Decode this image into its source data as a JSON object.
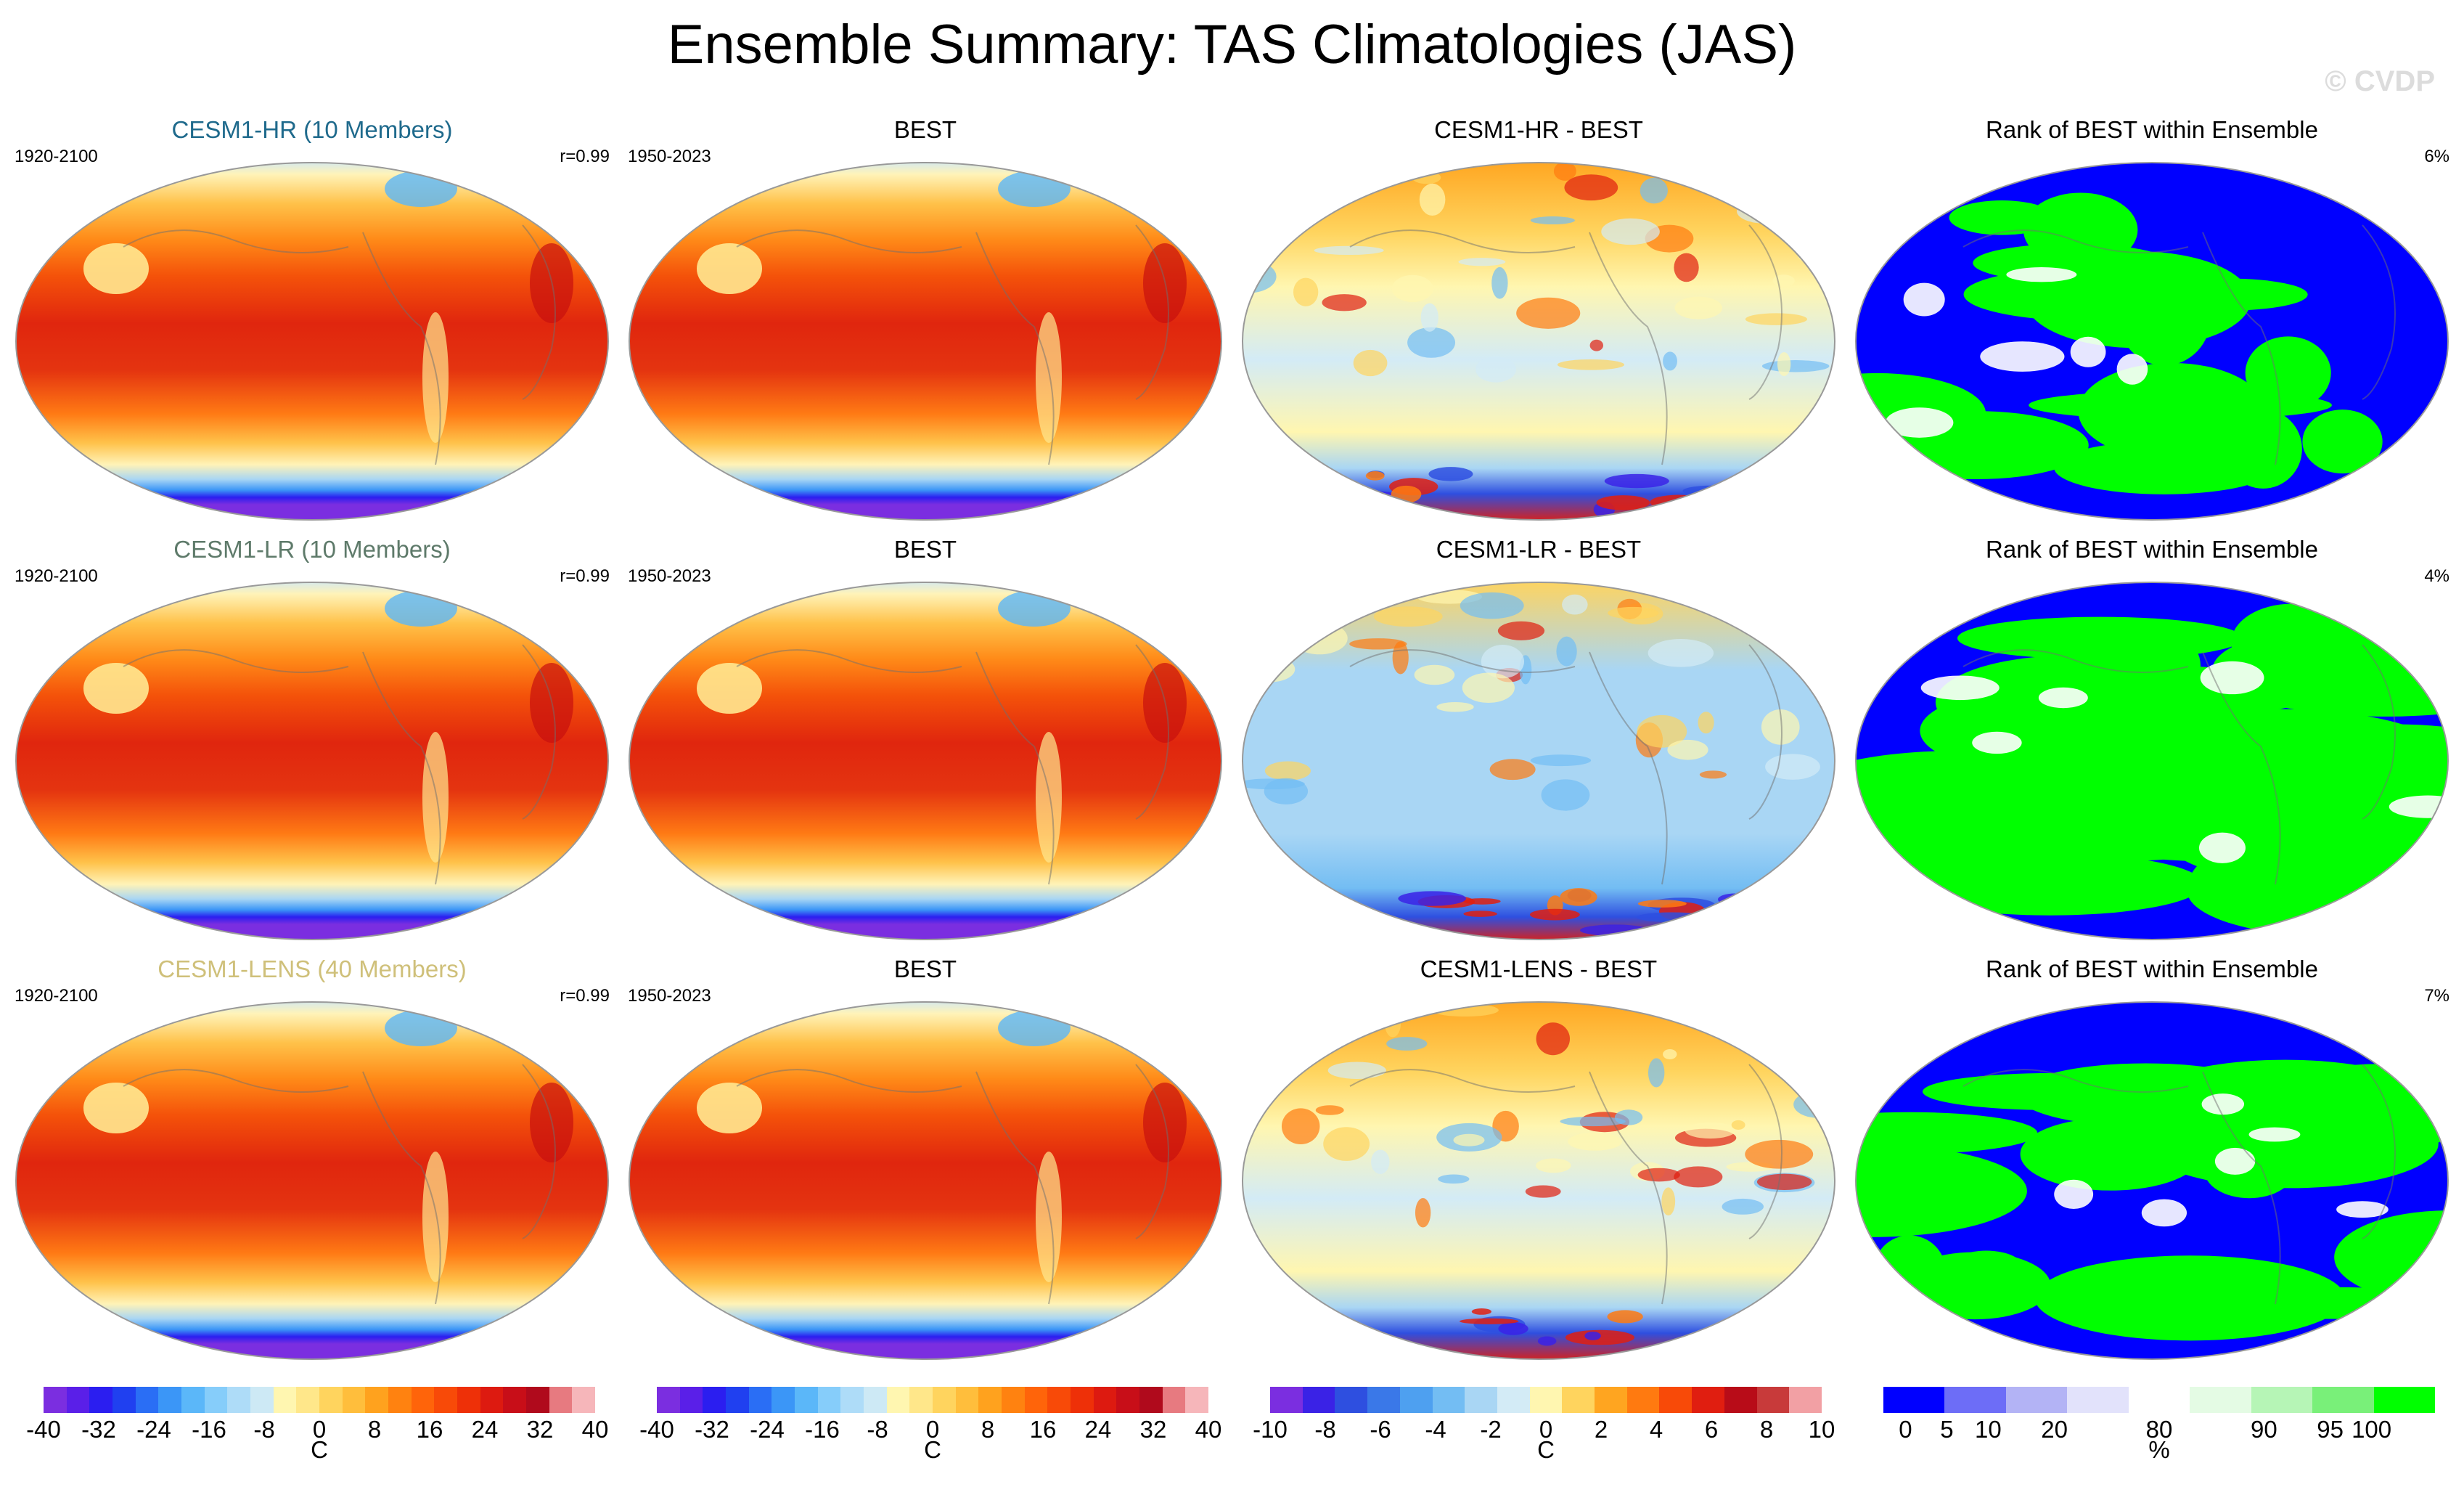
{
  "title": "Ensemble Summary: TAS Climatologies (JAS)",
  "watermark": "© CVDP",
  "rows": [
    {
      "model": {
        "title": "CESM1-HR (10 Members)",
        "title_color": "#1f6a8c",
        "left": "1920-2100",
        "right": "r=0.99"
      },
      "obs": {
        "title": "BEST",
        "left": "1950-2023",
        "right": ""
      },
      "diff": {
        "title": "CESM1-HR - BEST",
        "left": "",
        "right": ""
      },
      "rank": {
        "title": "Rank of BEST within Ensemble",
        "left": "",
        "right": "6%"
      }
    },
    {
      "model": {
        "title": "CESM1-LR (10 Members)",
        "title_color": "#5e7a6a",
        "left": "1920-2100",
        "right": "r=0.99"
      },
      "obs": {
        "title": "BEST",
        "left": "1950-2023",
        "right": ""
      },
      "diff": {
        "title": "CESM1-LR - BEST",
        "left": "",
        "right": ""
      },
      "rank": {
        "title": "Rank of BEST within Ensemble",
        "left": "",
        "right": "4%"
      }
    },
    {
      "model": {
        "title": "CESM1-LENS (40 Members)",
        "title_color": "#cfc07a",
        "left": "1920-2100",
        "right": "r=0.99"
      },
      "obs": {
        "title": "BEST",
        "left": "1950-2023",
        "right": ""
      },
      "diff": {
        "title": "CESM1-LENS - BEST",
        "left": "",
        "right": ""
      },
      "rank": {
        "title": "Rank of BEST within Ensemble",
        "left": "",
        "right": "7%"
      }
    }
  ],
  "colorbars": [
    {
      "labels": [
        "-40",
        "-32",
        "-24",
        "-16",
        "-8",
        "0",
        "8",
        "16",
        "24",
        "32",
        "40"
      ],
      "unit": "C",
      "colors": [
        "#7b2ee0",
        "#5a1fe8",
        "#2b1ef0",
        "#2040f0",
        "#2a6ef5",
        "#3b96f7",
        "#5bb7f9",
        "#86cdfa",
        "#aedcf8",
        "#cde9f5",
        "#fff6b0",
        "#ffe78a",
        "#ffd45e",
        "#ffbe3c",
        "#ffa21e",
        "#ff8210",
        "#ff640a",
        "#f84a08",
        "#ee3008",
        "#dd1a10",
        "#c80e18",
        "#b00a1c",
        "#e77a80",
        "#f6b6ba"
      ]
    },
    {
      "labels": [
        "-40",
        "-32",
        "-24",
        "-16",
        "-8",
        "0",
        "8",
        "16",
        "24",
        "32",
        "40"
      ],
      "unit": "C",
      "colors": [
        "#7b2ee0",
        "#5a1fe8",
        "#2b1ef0",
        "#2040f0",
        "#2a6ef5",
        "#3b96f7",
        "#5bb7f9",
        "#86cdfa",
        "#aedcf8",
        "#cde9f5",
        "#fff6b0",
        "#ffe78a",
        "#ffd45e",
        "#ffbe3c",
        "#ffa21e",
        "#ff8210",
        "#ff640a",
        "#f84a08",
        "#ee3008",
        "#dd1a10",
        "#c80e18",
        "#b00a1c",
        "#e77a80",
        "#f6b6ba"
      ]
    },
    {
      "labels": [
        "-10",
        "-8",
        "-6",
        "-4",
        "-2",
        "0",
        "2",
        "4",
        "6",
        "8",
        "10"
      ],
      "unit": "C",
      "colors": [
        "#7b2ee0",
        "#3a22e6",
        "#2e4fe0",
        "#3a78e8",
        "#4ea0f0",
        "#73bdf3",
        "#a9d6f4",
        "#d3ebf6",
        "#fff6b0",
        "#ffd45e",
        "#ffa520",
        "#ff7a10",
        "#f84a08",
        "#e01e10",
        "#b80c18",
        "#c83a3a",
        "#f2a0a4"
      ]
    },
    {
      "labels": [
        "0",
        "5",
        "10",
        "20",
        "80",
        "90",
        "95",
        "100"
      ],
      "unit": "%",
      "colors": [
        "#0000ff",
        "#6d6df7",
        "#b3b3f5",
        "#e2e2fb",
        "#ffffff",
        "#e4fbe4",
        "#b6f5b6",
        "#79f079",
        "#00ff00"
      ]
    }
  ]
}
